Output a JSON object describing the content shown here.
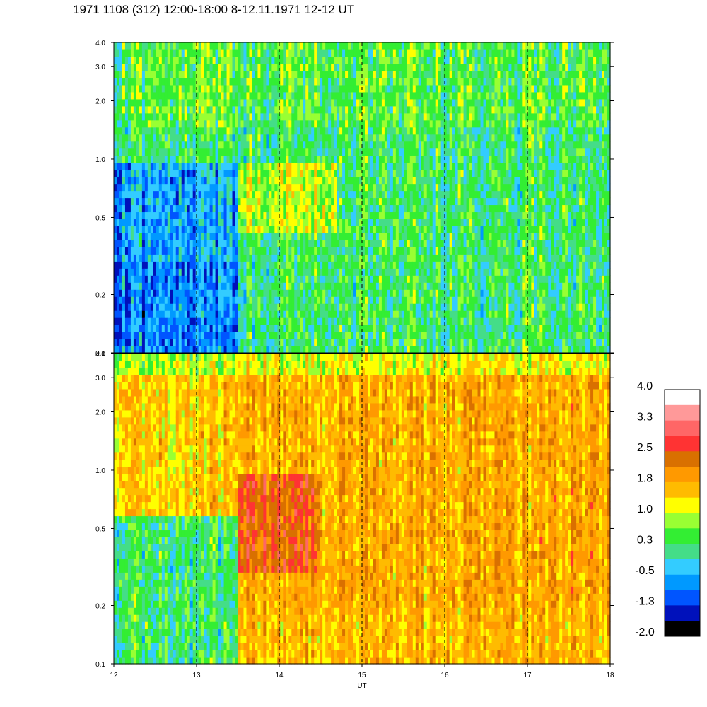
{
  "title": "1971 1108 (312) 12:00-18:00 8-12.11.1971  12-12 UT",
  "chart_data": [
    {
      "type": "heatmap",
      "panel": "top",
      "x_ticks": [
        "12",
        "13",
        "14",
        "15",
        "16",
        "17",
        "18"
      ],
      "xlim": [
        12,
        18
      ],
      "y_ticks": [
        "0.1",
        "0.2",
        "0.5",
        "1.0",
        "2.0",
        "3.0",
        "4.0"
      ],
      "y_tick_values": [
        0.1,
        0.2,
        0.5,
        1.0,
        2.0,
        3.0,
        4.0
      ],
      "ylim": [
        0.1,
        4.0
      ],
      "y_scale": "log",
      "grid": "vertical dashed lines at each hour",
      "description_of_intensity": {
        "regions": [
          {
            "x_range": [
              12,
              13.5
            ],
            "y_range": [
              0.1,
              1.0
            ],
            "level": -0.5
          },
          {
            "x_range": [
              12,
              13.5
            ],
            "y_range": [
              1.0,
              4.0
            ],
            "level": 0.3
          },
          {
            "x_range": [
              13.5,
              14.7
            ],
            "y_range": [
              0.4,
              1.0
            ],
            "level": 1.0
          },
          {
            "x_range": [
              13.5,
              18
            ],
            "y_range": [
              0.1,
              4.0
            ],
            "level": 0.3
          }
        ]
      }
    },
    {
      "type": "heatmap",
      "panel": "bottom",
      "x_ticks": [
        "12",
        "13",
        "14",
        "15",
        "16",
        "17",
        "18"
      ],
      "xlim": [
        12,
        18
      ],
      "xlabel": "UT",
      "y_ticks": [
        "0.1",
        "0.2",
        "0.5",
        "1.0",
        "2.0",
        "3.0",
        "4.0"
      ],
      "y_tick_values": [
        0.1,
        0.2,
        0.5,
        1.0,
        2.0,
        3.0,
        4.0
      ],
      "ylim": [
        0.1,
        4.0
      ],
      "y_scale": "log",
      "grid": "vertical dashed lines at each hour",
      "description_of_intensity": {
        "regions": [
          {
            "x_range": [
              12,
              13.5
            ],
            "y_range": [
              0.1,
              0.6
            ],
            "level": 0.3
          },
          {
            "x_range": [
              12,
              13.5
            ],
            "y_range": [
              0.6,
              4.0
            ],
            "level": 1.5
          },
          {
            "x_range": [
              13.5,
              14.5
            ],
            "y_range": [
              0.3,
              1.0
            ],
            "level": 2.5
          },
          {
            "x_range": [
              13.5,
              18
            ],
            "y_range": [
              0.1,
              4.0
            ],
            "level": 1.8
          }
        ]
      }
    }
  ],
  "colorbar": {
    "labels": [
      "4.0",
      "3.3",
      "2.5",
      "1.8",
      "1.0",
      "0.3",
      "-0.5",
      "-1.3",
      "-2.0"
    ],
    "colors": [
      "#ffffff",
      "#ff9999",
      "#ff6666",
      "#ff3333",
      "#d97000",
      "#ff9900",
      "#ffbb00",
      "#ffff00",
      "#99ff33",
      "#33ee33",
      "#44dd88",
      "#33ccff",
      "#0099ff",
      "#0055ff",
      "#0011bb",
      "#000000"
    ]
  },
  "palette": {
    "-2.0": "#000000",
    "-1.5": "#0011bb",
    "-1.0": "#0055ff",
    "-0.7": "#0099ff",
    "-0.4": "#33ccff",
    "0.0": "#44dd88",
    "0.3": "#33ee33",
    "0.7": "#99ff33",
    "1.0": "#ffff00",
    "1.4": "#ffbb00",
    "1.8": "#ff9900",
    "2.2": "#d97000",
    "2.6": "#ff3333",
    "3.0": "#ff6666",
    "3.4": "#ff9999",
    "4.0": "#ffffff"
  }
}
